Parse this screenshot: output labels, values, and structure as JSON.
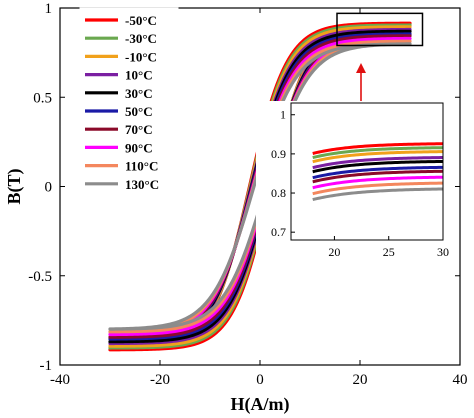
{
  "chart_data": {
    "type": "line",
    "xlabel": "H(A/m)",
    "ylabel": "B(T)",
    "xlim": [
      -40,
      40
    ],
    "ylim": [
      -1,
      1
    ],
    "xticks": [
      -40,
      -20,
      0,
      20,
      40
    ],
    "yticks": [
      -1,
      -0.5,
      0,
      0.5,
      1
    ],
    "grid": false,
    "legend_position": "upper-left",
    "h_range": [
      -30,
      30
    ],
    "series": [
      {
        "name": "-50°C",
        "color": "#ff0000",
        "saturation": 0.915,
        "coercivity": 2.1,
        "width": 7.5
      },
      {
        "name": "-30°C",
        "color": "#6aa84f",
        "saturation": 0.905,
        "coercivity": 2.0,
        "width": 7.6
      },
      {
        "name": "-10°C",
        "color": "#f1a11b",
        "saturation": 0.895,
        "coercivity": 1.9,
        "width": 7.7
      },
      {
        "name": "10°C",
        "color": "#7b1fa2",
        "saturation": 0.88,
        "coercivity": 1.8,
        "width": 7.8
      },
      {
        "name": "30°C",
        "color": "#000000",
        "saturation": 0.87,
        "coercivity": 1.7,
        "width": 7.9
      },
      {
        "name": "50°C",
        "color": "#1a1aa6",
        "saturation": 0.855,
        "coercivity": 1.6,
        "width": 8.0
      },
      {
        "name": "70°C",
        "color": "#8b0a2a",
        "saturation": 0.845,
        "coercivity": 1.5,
        "width": 8.1
      },
      {
        "name": "90°C",
        "color": "#ff00ff",
        "saturation": 0.83,
        "coercivity": 1.4,
        "width": 8.2
      },
      {
        "name": "110°C",
        "color": "#f4875e",
        "saturation": 0.815,
        "coercivity": 1.3,
        "width": 8.3
      },
      {
        "name": "130°C",
        "color": "#8c8c8c",
        "saturation": 0.8,
        "coercivity": 1.2,
        "width": 8.4
      }
    ],
    "inset": {
      "xlim": [
        16,
        30
      ],
      "ylim": [
        0.68,
        1.03
      ],
      "xticks": [
        20,
        25,
        30
      ],
      "yticks": [
        0.7,
        0.8,
        0.9,
        1
      ]
    }
  }
}
